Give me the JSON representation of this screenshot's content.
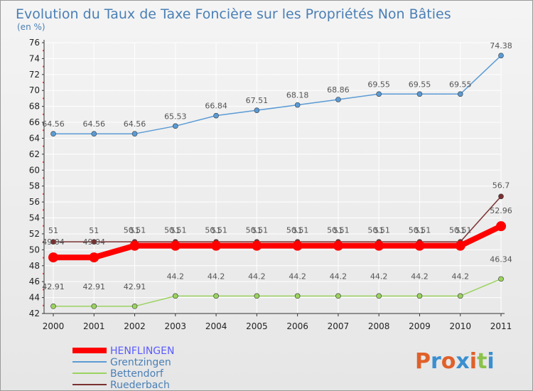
{
  "chart_data": {
    "type": "line",
    "title": "Evolution du Taux de Taxe Foncière sur les Propriétés Non Bâties",
    "subtitle": "(en %)",
    "x": [
      "2000",
      "2001",
      "2002",
      "2003",
      "2004",
      "2005",
      "2006",
      "2007",
      "2008",
      "2009",
      "2010",
      "2011"
    ],
    "y_ticks": [
      "42",
      "44",
      "46",
      "48",
      "50",
      "52",
      "54",
      "56",
      "58",
      "60",
      "62",
      "64",
      "66",
      "68",
      "70",
      "72",
      "74",
      "76"
    ],
    "ylim": [
      42,
      76
    ],
    "grid": true,
    "legend_position": "bottom-left",
    "series": [
      {
        "name": "Grentzingen",
        "color": "#5b9bd5",
        "values": [
          64.56,
          64.56,
          64.56,
          65.53,
          66.84,
          67.51,
          68.18,
          68.86,
          69.55,
          69.55,
          69.55,
          74.38
        ],
        "labels": [
          "64.56",
          "64.56",
          "64.56",
          "65.53",
          "66.84",
          "67.51",
          "68.18",
          "68.86",
          "69.55",
          "69.55",
          "69.55",
          "74.38"
        ]
      },
      {
        "name": "Ruederbach",
        "color": "#7b3030",
        "values": [
          51,
          51,
          51,
          51,
          51,
          51,
          51,
          51,
          51,
          51,
          51,
          56.7
        ],
        "labels": [
          "51",
          "51",
          "51",
          "51",
          "51",
          "51",
          "51",
          "51",
          "51",
          "51",
          "51",
          "56.7"
        ]
      },
      {
        "name": "HENFLINGEN",
        "color": "#ff0000",
        "values": [
          49.04,
          49.04,
          50.51,
          50.51,
          50.51,
          50.51,
          50.51,
          50.51,
          50.51,
          50.51,
          50.51,
          52.96
        ],
        "labels": [
          "49.04",
          "49.04",
          "50.51",
          "50.51",
          "50.51",
          "50.51",
          "50.51",
          "50.51",
          "50.51",
          "50.51",
          "50.51",
          "52.96"
        ]
      },
      {
        "name": "Bettendorf",
        "color": "#9bd35f",
        "values": [
          42.91,
          42.91,
          42.91,
          44.2,
          44.2,
          44.2,
          44.2,
          44.2,
          44.2,
          44.2,
          44.2,
          46.34
        ],
        "labels": [
          "42.91",
          "42.91",
          "42.91",
          "44.2",
          "44.2",
          "44.2",
          "44.2",
          "44.2",
          "44.2",
          "44.2",
          "44.2",
          "46.34"
        ]
      }
    ],
    "legend": [
      {
        "name": "HENFLINGEN",
        "color": "#ff0000",
        "text_color": "#5a5aff"
      },
      {
        "name": "Grentzingen",
        "color": "#5b9bd5",
        "text_color": "#4a7fb5"
      },
      {
        "name": "Bettendorf",
        "color": "#9bd35f",
        "text_color": "#4a7fb5"
      },
      {
        "name": "Ruederbach",
        "color": "#7b3030",
        "text_color": "#4a7fb5"
      }
    ]
  },
  "logo": {
    "letters": [
      "P",
      "r",
      "o",
      "x",
      "i",
      "t",
      "i"
    ],
    "colors": [
      "#e0602a",
      "#3a8fd0",
      "#e0602a",
      "#3a8fd0",
      "#e0602a",
      "#8bc34a",
      "#3a8fd0"
    ]
  }
}
